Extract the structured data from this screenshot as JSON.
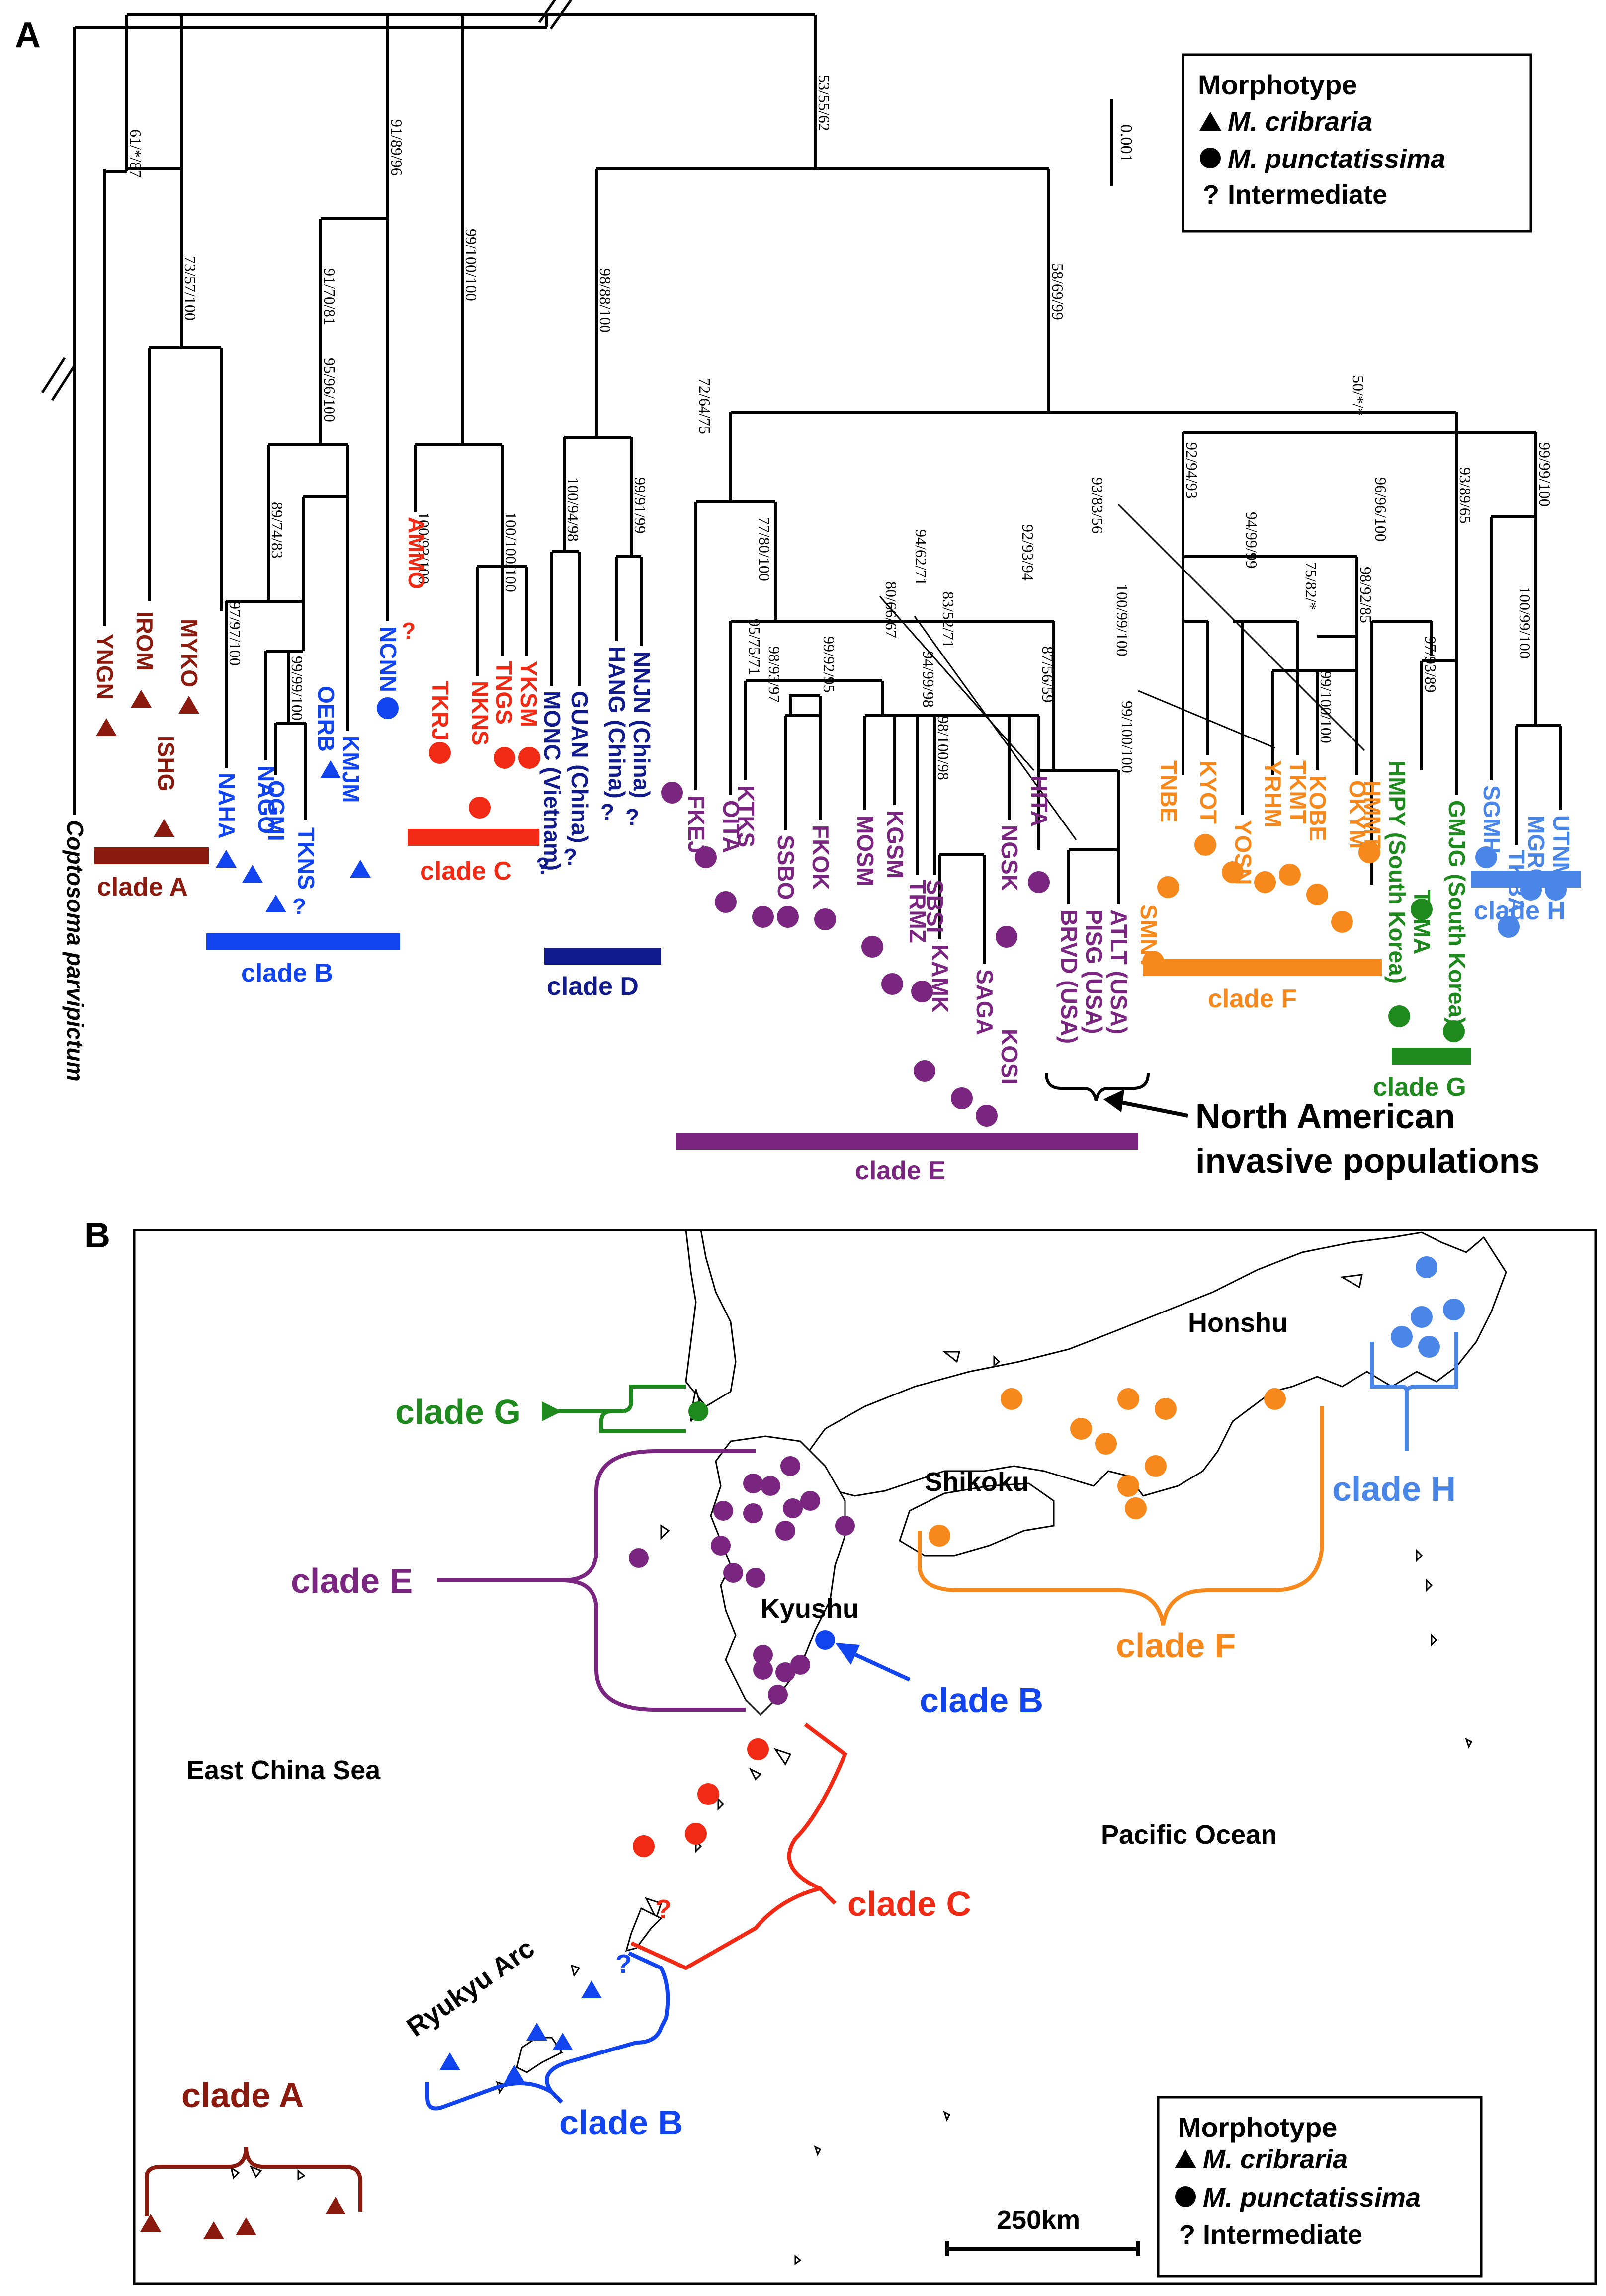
{
  "panels": {
    "a": "A",
    "b": "B"
  },
  "colors": {
    "cladeA": "#8b1a0e",
    "cladeB": "#1144ee",
    "cladeC": "#f02a14",
    "cladeD": "#111a8a",
    "cladeE": "#7a2580",
    "cladeF": "#f7881c",
    "cladeG": "#1e8a1e",
    "cladeH": "#4a86e8"
  },
  "tree": {
    "outgroup": "Coptosoma parvipictum",
    "supports": {
      "s1": "61/*/87",
      "s2": "73/57/100",
      "s3": "91/70/81",
      "s4": "95/96/100",
      "s5": "89/74/83",
      "s6": "97/97/100",
      "s7": "99/99/100",
      "s8": "91/89/96",
      "s9": "99/100/100",
      "s10": "100/93/100",
      "s11": "100/100/100",
      "s12": "53/55/62",
      "s13": "98/88/100",
      "s14": "100/94/98",
      "s15": "99/91/99",
      "s16": "58/69/99",
      "s17": "72/64/75",
      "s18": "77/80/100",
      "s19": "80/66/67",
      "s20": "94/62/71",
      "s21": "92/93/94",
      "s22": "95/75/71",
      "s23": "98/93/97",
      "s24": "99/92/95",
      "s25": "83/52/71",
      "s26": "94/99/98",
      "s27": "98/100/98",
      "s28": "87/56/59",
      "s29": "99/100/100",
      "s30": "50/*/*",
      "s31": "92/94/93",
      "s32": "93/83/56",
      "s33": "100/99/100",
      "s34": "94/99/99",
      "s35": "75/82/*",
      "s36": "98/92/85",
      "s37": "99/100/100",
      "s38": "96/96/100",
      "s39": "97/93/89",
      "s40": "93/89/65",
      "s41": "99/99/100",
      "s42": "100/99/100"
    },
    "tips": {
      "YNGN": "YNGN",
      "IROM": "IROM",
      "ISHG": "ISHG",
      "MYKO": "MYKO",
      "NAHA": "NAHA",
      "NAGO": "NAGO",
      "OGMI": "OGMI",
      "TKNS": "TKNS",
      "OERB": "OERB",
      "KMJM": "KMJM",
      "NCNN": "NCNN",
      "AMMO": "AMMO",
      "TKRJ": "TKRJ",
      "NKNS": "NKNS",
      "TNGS": "TNGS",
      "YKSM": "YKSM",
      "MONC": "MONC (Vietnam)",
      "GUAN": "GUAN (China)",
      "HANG": "HANG (China)",
      "NNJN": "NNJN (China)",
      "FKEJ": "FKEJ",
      "OITA": "OITA",
      "KTKS": "KTKS",
      "SSBO": "SSBO",
      "FKOK": "FKOK",
      "MOSM": "MOSM",
      "KGSM": "KGSM",
      "TRMZ": "TRMZ",
      "SBSI": "SBSI",
      "KAMK": "KAMK",
      "SAGA": "SAGA",
      "KOSI": "KOSI",
      "NGSK": "NGSK",
      "HITA": "HITA",
      "BRVD": "BRVD (USA)",
      "PISG": "PISG (USA)",
      "ATLT": "ATLT (USA)",
      "SMNT": "SMNT",
      "TNBE": "TNBE",
      "KYOT": "KYOT",
      "YOSN": "YOSN",
      "YRHM": "YRHM",
      "TKMT": "TKMT",
      "KOBE": "KOBE",
      "OKYM": "OKYM",
      "HMMT": "HMMT",
      "HMPY": "HMPY (South Korea)",
      "TSMA": "TSMA",
      "GMJG": "GMJG (South Korea)",
      "SGMH": "SGMH",
      "TKBA": "TKBA",
      "MGRO": "MGRO",
      "UTNM": "UTNM"
    },
    "clades": {
      "A": "clade A",
      "B": "clade B",
      "C": "clade C",
      "D": "clade D",
      "E": "clade E",
      "F": "clade F",
      "G": "clade G",
      "H": "clade H"
    },
    "scale_bar": "0.001",
    "annotation_line1": "North American",
    "annotation_line2": "invasive populations"
  },
  "legend": {
    "title": "Morphotype",
    "triangle_label": "M. cribraria",
    "circle_label": "M. punctatissima",
    "q_symbol": "?",
    "q_label": "Intermediate"
  },
  "map": {
    "places": {
      "honshu": "Honshu",
      "shikoku": "Shikoku",
      "kyushu": "Kyushu",
      "ecs": "East China Sea",
      "pacific": "Pacific Ocean",
      "ryukyu": "Ryukyu Arc"
    },
    "clades": {
      "A": "clade A",
      "B": "clade B",
      "B2": "clade B",
      "C": "clade C",
      "E": "clade E",
      "F": "clade F",
      "G": "clade G",
      "H": "clade H"
    },
    "scale_label": "250km"
  }
}
